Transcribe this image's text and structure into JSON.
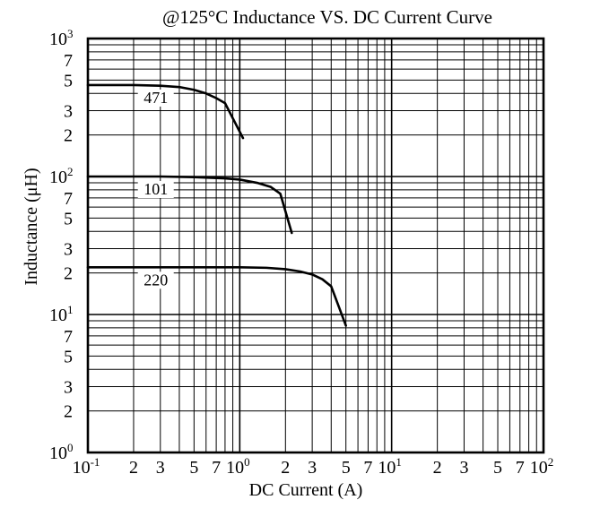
{
  "chart_data": {
    "type": "line",
    "title": "@125°C Inductance VS. DC Current Curve",
    "xlabel": "DC Current (A)",
    "ylabel": "Inductance (μH)",
    "xscale": "log",
    "yscale": "log",
    "xlim": [
      0.1,
      100
    ],
    "ylim": [
      1,
      1000
    ],
    "grid": true,
    "legend": "none",
    "x_ticks": [
      {
        "base": "10",
        "exp": "-1",
        "value": 0.1
      },
      {
        "label": "2",
        "value": 0.2
      },
      {
        "label": "3",
        "value": 0.3
      },
      {
        "label": "5",
        "value": 0.5
      },
      {
        "label": "7",
        "value": 0.7
      },
      {
        "base": "10",
        "exp": "0",
        "value": 1
      },
      {
        "label": "2",
        "value": 2
      },
      {
        "label": "3",
        "value": 3
      },
      {
        "label": "5",
        "value": 5
      },
      {
        "label": "7",
        "value": 7
      },
      {
        "base": "10",
        "exp": "1",
        "value": 10
      },
      {
        "label": "2",
        "value": 20
      },
      {
        "label": "3",
        "value": 30
      },
      {
        "label": "5",
        "value": 50
      },
      {
        "label": "7",
        "value": 70
      },
      {
        "base": "10",
        "exp": "2",
        "value": 100
      }
    ],
    "y_ticks": [
      {
        "base": "10",
        "exp": "0",
        "value": 1
      },
      {
        "label": "2",
        "value": 2
      },
      {
        "label": "3",
        "value": 3
      },
      {
        "label": "5",
        "value": 5
      },
      {
        "label": "7",
        "value": 7
      },
      {
        "base": "10",
        "exp": "1",
        "value": 10
      },
      {
        "label": "2",
        "value": 20
      },
      {
        "label": "3",
        "value": 30
      },
      {
        "label": "5",
        "value": 50
      },
      {
        "label": "7",
        "value": 70
      },
      {
        "base": "10",
        "exp": "2",
        "value": 100
      },
      {
        "label": "2",
        "value": 200
      },
      {
        "label": "3",
        "value": 300
      },
      {
        "label": "5",
        "value": 500
      },
      {
        "label": "7",
        "value": 700
      },
      {
        "base": "10",
        "exp": "3",
        "value": 1000
      }
    ],
    "series": [
      {
        "name": "471",
        "x": [
          0.1,
          0.2,
          0.3,
          0.4,
          0.5,
          0.6,
          0.7,
          0.8,
          1.05
        ],
        "y": [
          460,
          460,
          455,
          445,
          425,
          400,
          370,
          340,
          190
        ]
      },
      {
        "name": "101",
        "x": [
          0.1,
          0.3,
          0.5,
          0.8,
          1.0,
          1.3,
          1.6,
          1.85,
          2.2
        ],
        "y": [
          100,
          100,
          99,
          97,
          95,
          90,
          84,
          75,
          39
        ]
      },
      {
        "name": "220",
        "x": [
          0.1,
          0.3,
          0.5,
          1.0,
          1.5,
          2.0,
          2.5,
          3.0,
          3.5,
          4.0,
          5.0
        ],
        "y": [
          22,
          22,
          22,
          22,
          21.8,
          21.3,
          20.5,
          19.5,
          18.0,
          16.0,
          8.3
        ]
      }
    ]
  }
}
